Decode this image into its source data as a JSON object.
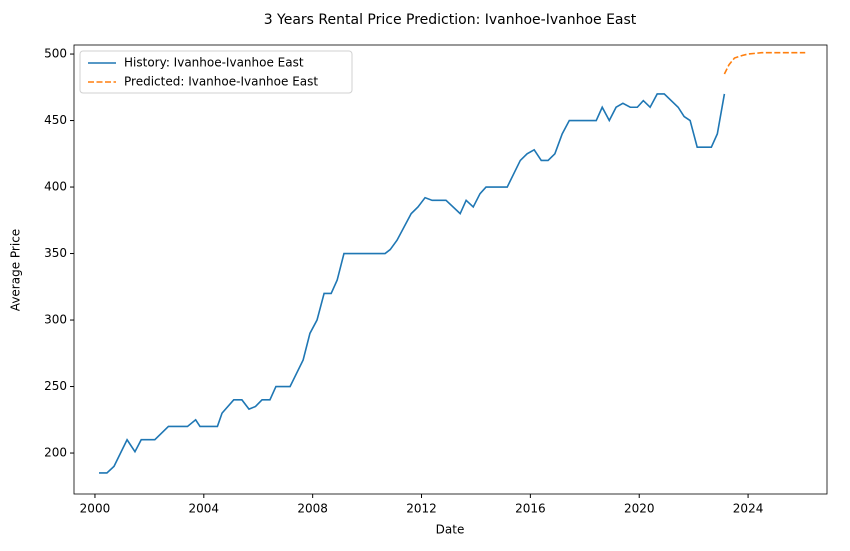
{
  "chart_data": {
    "type": "line",
    "title": "3 Years Rental Price Prediction: Ivanhoe-Ivanhoe East",
    "xlabel": "Date",
    "ylabel": "Average Price",
    "xlim": [
      1999.23,
      2026.9
    ],
    "xticks": [
      2000,
      2004,
      2008,
      2012,
      2016,
      2020,
      2024
    ],
    "ylim": [
      169.2,
      506.8
    ],
    "yticks": [
      200,
      250,
      300,
      350,
      400,
      450,
      500
    ],
    "legend": "upper left",
    "series": [
      {
        "name": "History: Ivanhoe-Ivanhoe East",
        "color": "#1f77b4",
        "linestyle": "solid",
        "x": [
          2000.15,
          2000.44,
          2000.7,
          2001.18,
          2001.47,
          2001.7,
          2002.2,
          2002.7,
          2003.4,
          2003.7,
          2003.86,
          2004.5,
          2004.67,
          2005.1,
          2005.4,
          2005.66,
          2005.9,
          2006.14,
          2006.43,
          2006.65,
          2007.17,
          2007.65,
          2007.9,
          2008.16,
          2008.42,
          2008.68,
          2008.9,
          2009.15,
          2010.66,
          2010.85,
          2011.1,
          2011.62,
          2011.87,
          2012.13,
          2012.39,
          2012.9,
          2013.42,
          2013.64,
          2013.9,
          2014.15,
          2014.37,
          2015.15,
          2015.63,
          2015.88,
          2016.14,
          2016.4,
          2016.65,
          2016.9,
          2017.17,
          2017.43,
          2018.42,
          2018.64,
          2018.9,
          2019.15,
          2019.4,
          2019.67,
          2019.93,
          2020.15,
          2020.4,
          2020.66,
          2020.92,
          2021.43,
          2021.65,
          2021.87,
          2022.13,
          2022.65,
          2022.87,
          2023.13
        ],
        "values": [
          185,
          185,
          190,
          210,
          201,
          210,
          210,
          220,
          220,
          225,
          220,
          220,
          230,
          240,
          240,
          233,
          235,
          240,
          240,
          250,
          250,
          270,
          290,
          300,
          320,
          320,
          330,
          350,
          350,
          353,
          360,
          380,
          385,
          392,
          390,
          390,
          380,
          390,
          385,
          395,
          400,
          400,
          420,
          425,
          428,
          420,
          420,
          425,
          440,
          450,
          450,
          460,
          450,
          460,
          463,
          460,
          460,
          465,
          460,
          470,
          470,
          460,
          453,
          450,
          430,
          430,
          440,
          470
        ]
      },
      {
        "name": "Predicted: Ivanhoe-Ivanhoe East",
        "color": "#ff7f0e",
        "linestyle": "dashed",
        "x": [
          2023.13,
          2023.3,
          2023.5,
          2023.8,
          2024.0,
          2024.5,
          2025.0,
          2025.5,
          2026.1
        ],
        "values": [
          485,
          492,
          497,
          499,
          500,
          501,
          501,
          501,
          501
        ]
      }
    ]
  }
}
